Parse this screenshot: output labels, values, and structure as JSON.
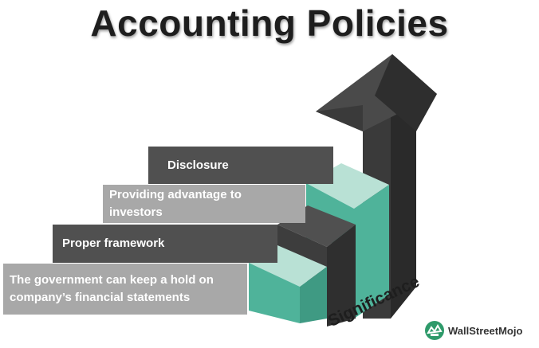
{
  "title": "Accounting Policies",
  "bars": [
    "Disclosure",
    "Providing advantage to investors",
    "Proper framework",
    "The government can keep a hold on company’s financial statements"
  ],
  "bar_lines": {
    "b1": [
      "Disclosure"
    ],
    "b2": [
      "Providing advantage to",
      "investors"
    ],
    "b3": [
      "Proper framework"
    ],
    "b4": [
      "The government can keep a hold on",
      "company’s financial statements"
    ]
  },
  "side_label": "Significance",
  "brand": "WallStreetMojo",
  "colors": {
    "dark_gray": "#505050",
    "light_gray": "#a8a8a8",
    "teal": "#4fb39a",
    "pale_teal": "#b9e1d5",
    "charcoal": "#2f2f2f"
  }
}
